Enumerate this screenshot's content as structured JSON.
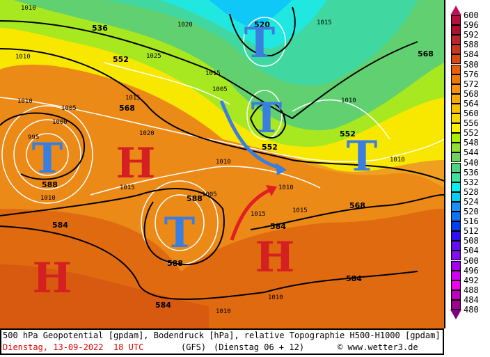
{
  "map": {
    "pressure_systems": [
      "T",
      "H",
      "T",
      "H",
      "H",
      "T",
      "T",
      "T"
    ],
    "pressure_system_colors": {
      "T": "#3a7fe0",
      "H": "#d42020"
    },
    "geopotential_labels": [
      "536",
      "552",
      "568",
      "588",
      "584",
      "588",
      "588",
      "584",
      "584",
      "584",
      "568",
      "552",
      "552",
      "568",
      "520"
    ],
    "isobar_labels": [
      "1010",
      "1005",
      "1000",
      "995",
      "1010",
      "1015",
      "1020",
      "1015",
      "1010",
      "1005",
      "1010",
      "1015",
      "1010",
      "1015",
      "1010",
      "1010",
      "1005",
      "1015",
      "1020",
      "1025",
      "1010",
      "1015",
      "1010",
      "1010"
    ],
    "arrows": [
      {
        "color": "#3a7fe0",
        "meaning": "cold air"
      },
      {
        "color": "#e02020",
        "meaning": "warm air"
      }
    ]
  },
  "legend": {
    "labels": [
      "600",
      "596",
      "592",
      "588",
      "584",
      "580",
      "576",
      "572",
      "568",
      "564",
      "560",
      "556",
      "552",
      "548",
      "544",
      "540",
      "536",
      "532",
      "528",
      "524",
      "520",
      "516",
      "512",
      "508",
      "504",
      "500",
      "496",
      "492",
      "488",
      "484",
      "480"
    ],
    "colors": [
      "#b8103c",
      "#b01030",
      "#b82828",
      "#c83820",
      "#d84810",
      "#e86008",
      "#f07808",
      "#f89010",
      "#f8a800",
      "#f8c000",
      "#f8d800",
      "#f8f000",
      "#a8f000",
      "#90e030",
      "#70d060",
      "#50d080",
      "#40e0a0",
      "#00f0f0",
      "#00d0f8",
      "#1890f8",
      "#1070f0",
      "#0040f0",
      "#3010f0",
      "#6010f0",
      "#8010f0",
      "#a000f0",
      "#d000f0",
      "#f000f0",
      "#c000c0",
      "#a00090"
    ],
    "top_arrow_color": "#c0105a",
    "bottom_arrow_color": "#800080"
  },
  "footer": {
    "line1": "500 hPa Geopotential [gpdam], Bodendruck [hPa], relative Topographie H500-H1000 [gpdam]",
    "date": "Dienstag, 13-09-2022  18 UTC",
    "model": "(GFS)",
    "run": "(Dienstag 06 + 12)",
    "credit": "© www.wetter3.de"
  }
}
